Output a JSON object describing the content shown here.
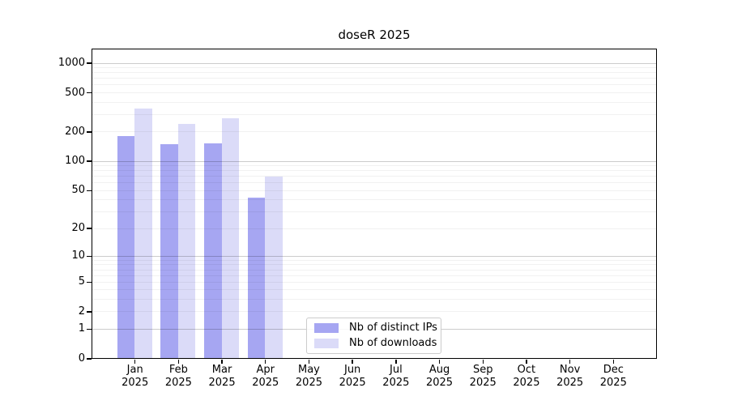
{
  "title": "doseR 2025",
  "chart_data": {
    "type": "bar",
    "title": "doseR 2025",
    "categories": [
      "Jan",
      "Feb",
      "Mar",
      "Apr",
      "May",
      "Jun",
      "Jul",
      "Aug",
      "Sep",
      "Oct",
      "Nov",
      "Dec"
    ],
    "year_label": "2025",
    "y_ticks": [
      0,
      1,
      2,
      5,
      10,
      20,
      50,
      100,
      200,
      500,
      1000
    ],
    "y_scale": "log1p",
    "ylim": [
      0,
      1380
    ],
    "xlabel": "",
    "ylabel": "",
    "grid": {
      "horizontal": true,
      "minor_lines": true
    },
    "legend_position": "inside-bottom-center",
    "series": [
      {
        "name": "Nb of distinct IPs",
        "color": "#a6a6f2",
        "values": [
          182,
          150,
          154,
          42,
          null,
          null,
          null,
          null,
          null,
          null,
          null,
          null
        ]
      },
      {
        "name": "Nb of downloads",
        "color": "#dbdbf8",
        "values": [
          348,
          239,
          277,
          70,
          null,
          null,
          null,
          null,
          null,
          null,
          null,
          null
        ]
      }
    ]
  },
  "colors": {
    "background": "#ffffff",
    "axis": "#000000",
    "grid_major": "rgba(0,0,0,0.20)",
    "grid_minor": "rgba(0,0,0,0.055)",
    "legend_border": "#cccccc",
    "text": "#000000"
  }
}
